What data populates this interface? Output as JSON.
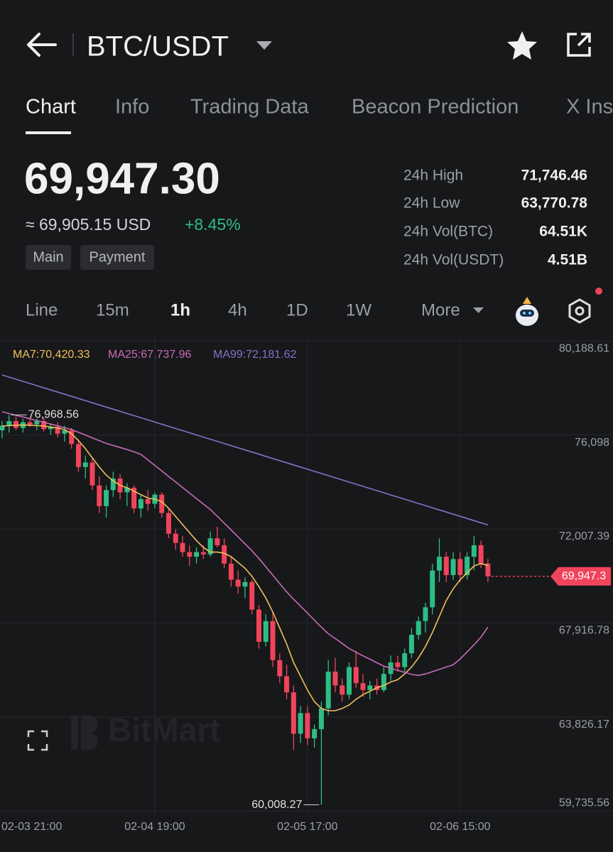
{
  "header": {
    "title": "BTC/USDT"
  },
  "tabs": [
    "Chart",
    "Info",
    "Trading Data",
    "Beacon Prediction",
    "X Ins"
  ],
  "price": {
    "last": "69,947.30",
    "usd": "≈ 69,905.15 USD",
    "change": "+8.45%"
  },
  "tags": [
    "Main",
    "Payment"
  ],
  "stats": [
    {
      "label": "24h High",
      "value": "71,746.46"
    },
    {
      "label": "24h Low",
      "value": "63,770.78"
    },
    {
      "label": "24h Vol(BTC)",
      "value": "64.51K"
    },
    {
      "label": "24h Vol(USDT)",
      "value": "4.51B"
    }
  ],
  "intervals": [
    "Line",
    "15m",
    "1h",
    "4h",
    "1D",
    "1W",
    "More"
  ],
  "chart_data": {
    "type": "candlestick",
    "watermark": "BitMart",
    "up_color": "#2ebd85",
    "down_color": "#f0445a",
    "grid": true,
    "categories": [
      "02-03 21:00",
      null,
      null,
      null,
      null,
      null,
      null,
      null,
      null,
      null,
      null,
      null,
      null,
      null,
      null,
      null,
      null,
      null,
      null,
      null,
      null,
      null,
      "02-04 19:00",
      null,
      null,
      null,
      null,
      null,
      null,
      null,
      null,
      null,
      null,
      null,
      null,
      null,
      null,
      null,
      null,
      null,
      null,
      null,
      null,
      null,
      "02-05 17:00",
      null,
      null,
      null,
      null,
      null,
      null,
      null,
      null,
      null,
      null,
      null,
      null,
      null,
      null,
      null,
      null,
      null,
      null,
      null,
      null,
      null,
      "02-06 15:00",
      null,
      null,
      null,
      null
    ],
    "open": [
      76300,
      76500,
      76700,
      76400,
      76650,
      76550,
      76700,
      76350,
      76450,
      76150,
      76300,
      75700,
      74700,
      74900,
      73900,
      73000,
      73700,
      74200,
      73600,
      73800,
      72900,
      73300,
      73100,
      73500,
      72700,
      71800,
      71400,
      71000,
      70800,
      71000,
      70900,
      71600,
      71300,
      70500,
      69800,
      69500,
      69700,
      68500,
      67100,
      68000,
      66300,
      65600,
      64900,
      63100,
      64000,
      62900,
      63300,
      64200,
      65800,
      65200,
      64800,
      66000,
      65300,
      65000,
      65200,
      65000,
      65700,
      66200,
      66000,
      66600,
      67400,
      68000,
      68600,
      70200,
      70800,
      70000,
      70700,
      70000,
      70800,
      71300,
      70500
    ],
    "high": [
      76700,
      76968.56,
      76900,
      76800,
      76850,
      76800,
      76850,
      76600,
      76650,
      76500,
      76400,
      75900,
      75200,
      75100,
      74300,
      73900,
      74500,
      74400,
      74000,
      73900,
      73500,
      73700,
      73600,
      73600,
      72900,
      72000,
      71700,
      71300,
      71200,
      71300,
      71900,
      72100,
      71600,
      70800,
      70200,
      69900,
      69800,
      68700,
      68300,
      68400,
      66600,
      66100,
      65200,
      64300,
      64300,
      63500,
      64500,
      66300,
      66400,
      65500,
      66200,
      66700,
      65700,
      65400,
      65500,
      66000,
      66500,
      66500,
      66800,
      67700,
      68200,
      68800,
      70500,
      71600,
      71000,
      71000,
      71000,
      71000,
      71700,
      71500,
      70700
    ],
    "low": [
      75950,
      76200,
      76300,
      76200,
      76450,
      76300,
      76250,
      76100,
      76000,
      75800,
      75500,
      74500,
      74200,
      73700,
      72700,
      72500,
      73400,
      73300,
      73000,
      72700,
      72500,
      72800,
      72900,
      72500,
      71600,
      71100,
      70800,
      70400,
      70500,
      70700,
      70800,
      71200,
      70300,
      69500,
      69200,
      69000,
      68300,
      66800,
      66900,
      66000,
      65300,
      64600,
      62400,
      62700,
      62600,
      62500,
      60008.27,
      63900,
      64900,
      64500,
      64600,
      65100,
      64700,
      64600,
      64800,
      64900,
      65400,
      65800,
      65800,
      66400,
      67200,
      67500,
      68300,
      69700,
      69700,
      69800,
      69700,
      69800,
      70200,
      70300,
      69700
    ],
    "close": [
      76500,
      76700,
      76400,
      76650,
      76550,
      76700,
      76350,
      76450,
      76150,
      76300,
      75700,
      74700,
      74900,
      73900,
      73000,
      73700,
      74200,
      73600,
      73800,
      72900,
      73300,
      73100,
      73500,
      72700,
      71800,
      71400,
      71000,
      70800,
      71000,
      70900,
      71600,
      71300,
      70500,
      69800,
      69500,
      69700,
      68500,
      67100,
      68000,
      66300,
      65600,
      64900,
      63100,
      64000,
      62900,
      63300,
      64200,
      65800,
      65200,
      64800,
      66000,
      65300,
      65000,
      65200,
      65000,
      65700,
      66200,
      66000,
      66600,
      67400,
      68000,
      68600,
      70200,
      70800,
      70000,
      70700,
      70000,
      70800,
      71300,
      70500,
      69947.3
    ],
    "series": [
      {
        "name": "MA7:70,420.33",
        "color": "#f0c05a",
        "values": [
          76485,
          76500,
          76520,
          76530,
          76520,
          76500,
          76490,
          76440,
          76400,
          76330,
          76150,
          75850,
          75500,
          75100,
          74700,
          74350,
          74100,
          73900,
          73800,
          73650,
          73500,
          73350,
          73300,
          73200,
          72900,
          72550,
          72200,
          71850,
          71500,
          71200,
          71000,
          71000,
          70950,
          70800,
          70550,
          70300,
          69950,
          69500,
          69000,
          68400,
          67700,
          67000,
          66200,
          65600,
          65000,
          64500,
          64200,
          64100,
          64100,
          64200,
          64350,
          64600,
          64800,
          64950,
          65100,
          65200,
          65350,
          65450,
          65700,
          66000,
          66400,
          66900,
          67500,
          68200,
          68900,
          69400,
          69800,
          70100,
          70400,
          70500,
          70420.33
        ]
      },
      {
        "name": "MA25:67,737.96",
        "color": "#c86bb7",
        "values": [
          77103,
          77030,
          76950,
          76880,
          76800,
          76720,
          76650,
          76570,
          76490,
          76410,
          76330,
          76210,
          76090,
          75970,
          75850,
          75730,
          75640,
          75550,
          75460,
          75360,
          75250,
          75010,
          74770,
          74530,
          74290,
          74050,
          73810,
          73570,
          73330,
          73090,
          72850,
          72560,
          72260,
          71960,
          71660,
          71360,
          71060,
          70720,
          70360,
          70000,
          69630,
          69270,
          68950,
          68650,
          68350,
          68040,
          67740,
          67450,
          67240,
          67030,
          66810,
          66640,
          66490,
          66340,
          66190,
          66040,
          65950,
          65860,
          65770,
          65680,
          65640,
          65700,
          65800,
          65900,
          66000,
          66100,
          66350,
          66660,
          66970,
          67300,
          67737.96
        ]
      },
      {
        "name": "MA99:72,181.62",
        "color": "#8a6fc9",
        "values": [
          78707,
          78614,
          78521,
          78428,
          78334,
          78241,
          78148,
          78055,
          77961,
          77868,
          77775,
          77682,
          77589,
          77495,
          77402,
          77309,
          77216,
          77123,
          77029,
          76936,
          76843,
          76750,
          76657,
          76563,
          76470,
          76377,
          76284,
          76191,
          76097,
          76004,
          75911,
          75818,
          75725,
          75631,
          75538,
          75445,
          75352,
          75259,
          75165,
          75072,
          74979,
          74886,
          74793,
          74699,
          74606,
          74513,
          74420,
          74327,
          74233,
          74140,
          74047,
          73954,
          73861,
          73767,
          73674,
          73581,
          73488,
          73395,
          73301,
          73208,
          73115,
          73022,
          72929,
          72835,
          72742,
          72649,
          72556,
          72463,
          72369,
          72276,
          72181.62
        ]
      }
    ],
    "ylim": [
      59500,
      80500
    ],
    "yticks": [
      {
        "value": 80188.61,
        "label": "80,188.61"
      },
      {
        "value": 76098,
        "label": "76,098"
      },
      {
        "value": 72007.39,
        "label": "72,007.39"
      },
      {
        "value": 67916.78,
        "label": "67,916.78"
      },
      {
        "value": 63826.17,
        "label": "63,826.17"
      },
      {
        "value": 59735.56,
        "label": "59,735.56"
      }
    ],
    "annotations": [
      {
        "value": 76968.56,
        "label": "76,968.56"
      },
      {
        "value": 60008.27,
        "label": "60,008.27"
      }
    ],
    "last_price": {
      "value": 69947.3,
      "label": "69,947.3"
    }
  }
}
